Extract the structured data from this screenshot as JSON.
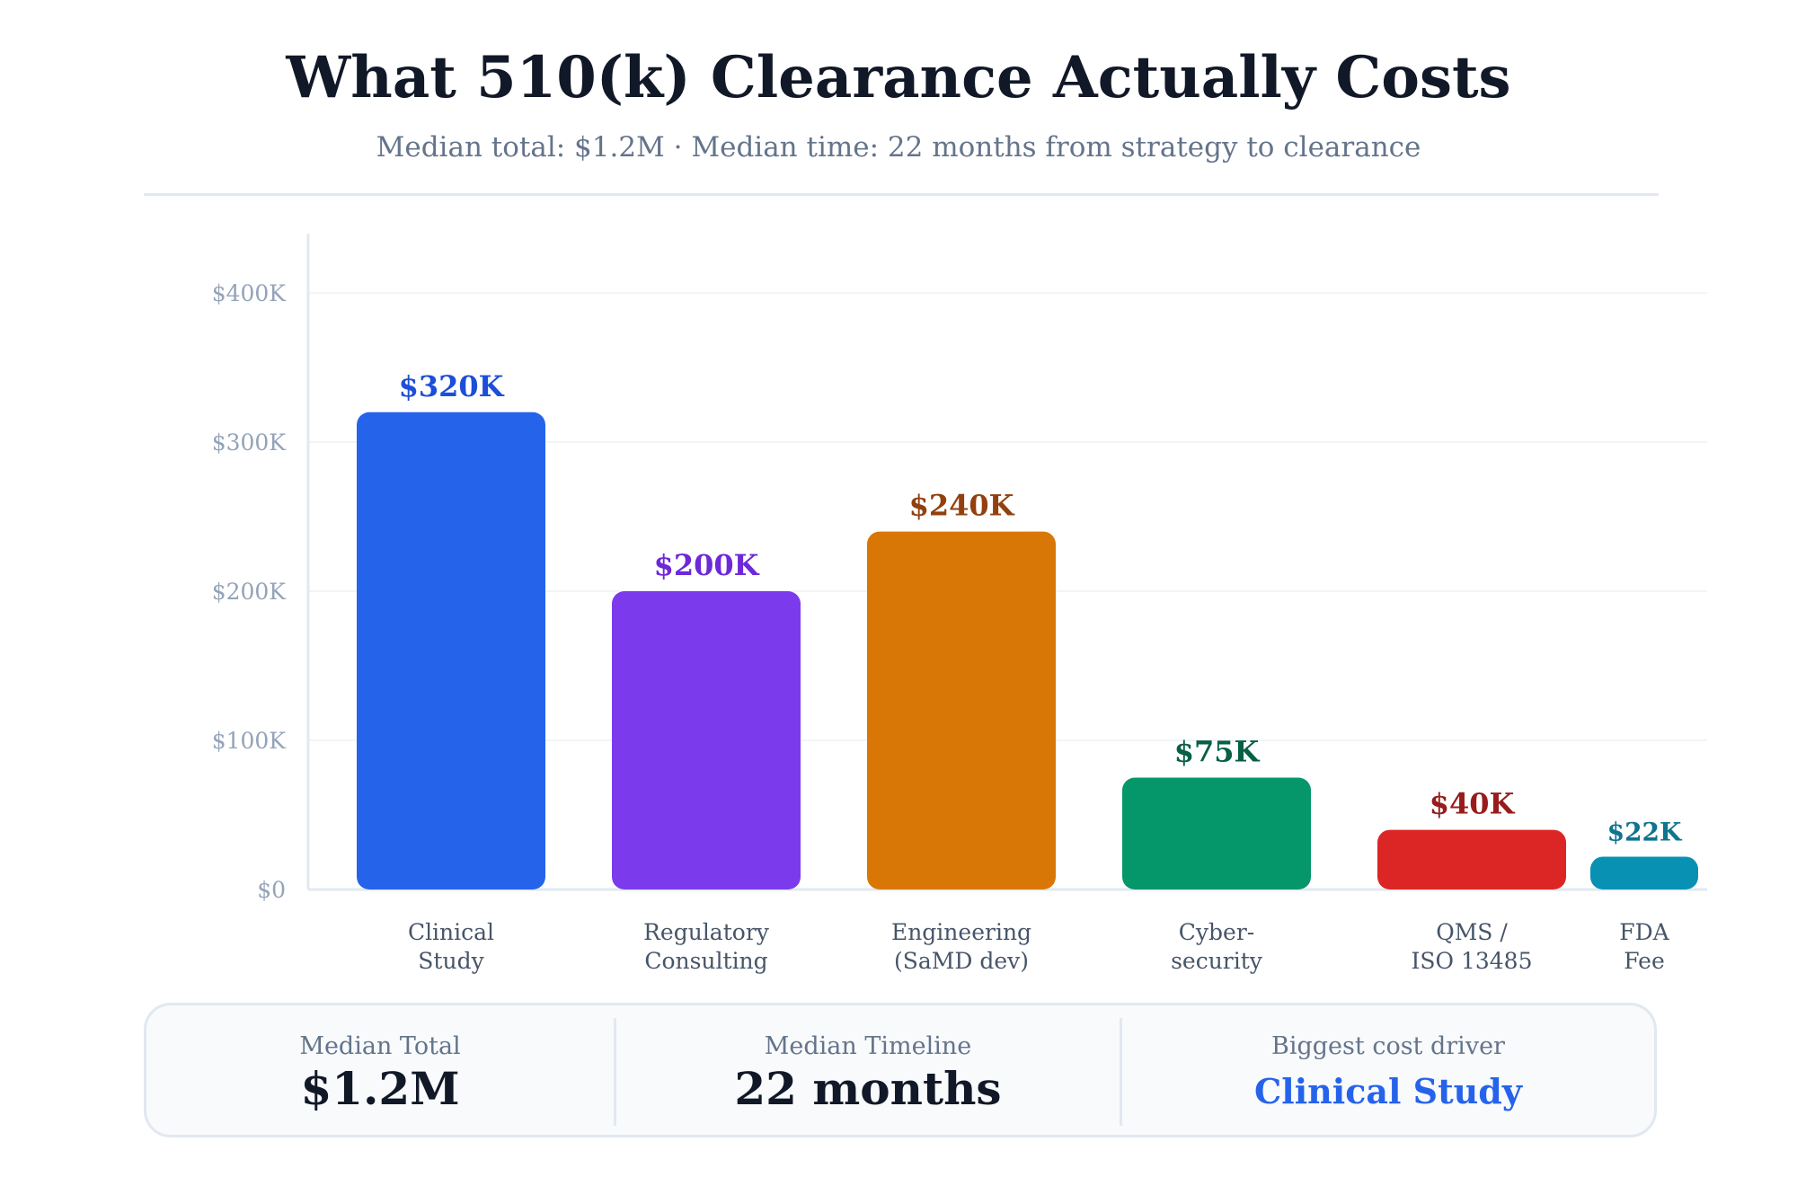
{
  "header": {
    "title": "What 510(k) Clearance Actually Costs",
    "subtitle": "Median total: $1.2M · Median time: 22 months from strategy to clearance"
  },
  "chart_data": {
    "type": "bar",
    "categories": [
      [
        "Clinical",
        "Study"
      ],
      [
        "Regulatory",
        "Consulting"
      ],
      [
        "Engineering",
        "(SaMD dev)"
      ],
      [
        "Cyber-",
        "security"
      ],
      [
        "QMS /",
        "ISO 13485"
      ],
      [
        "FDA",
        "Fee"
      ]
    ],
    "values": [
      320,
      200,
      240,
      75,
      40,
      22
    ],
    "value_labels": [
      "$320K",
      "$200K",
      "$240K",
      "$75K",
      "$40K",
      "$22K"
    ],
    "colors": [
      "#2563eb",
      "#7c3aed",
      "#d97706",
      "#059669",
      "#dc2626",
      "#0891b2"
    ],
    "label_colors": [
      "#1d4ed8",
      "#6d28d9",
      "#92400e",
      "#065f46",
      "#991b1b",
      "#0e7490"
    ],
    "y_ticks": [
      {
        "value": 0,
        "label": "$0"
      },
      {
        "value": 100,
        "label": "$100K"
      },
      {
        "value": 200,
        "label": "$200K"
      },
      {
        "value": 300,
        "label": "$300K"
      },
      {
        "value": 400,
        "label": "$400K"
      }
    ],
    "ylim": [
      0,
      440
    ],
    "grid": true,
    "legend": "none"
  },
  "summary": {
    "total_label": "Median Total",
    "total_value": "$1.2M",
    "timeline_label": "Median Timeline",
    "timeline_value": "22 months",
    "driver_label": "Biggest cost driver",
    "driver_value": "Clinical Study",
    "accent_color": "#2563eb"
  }
}
